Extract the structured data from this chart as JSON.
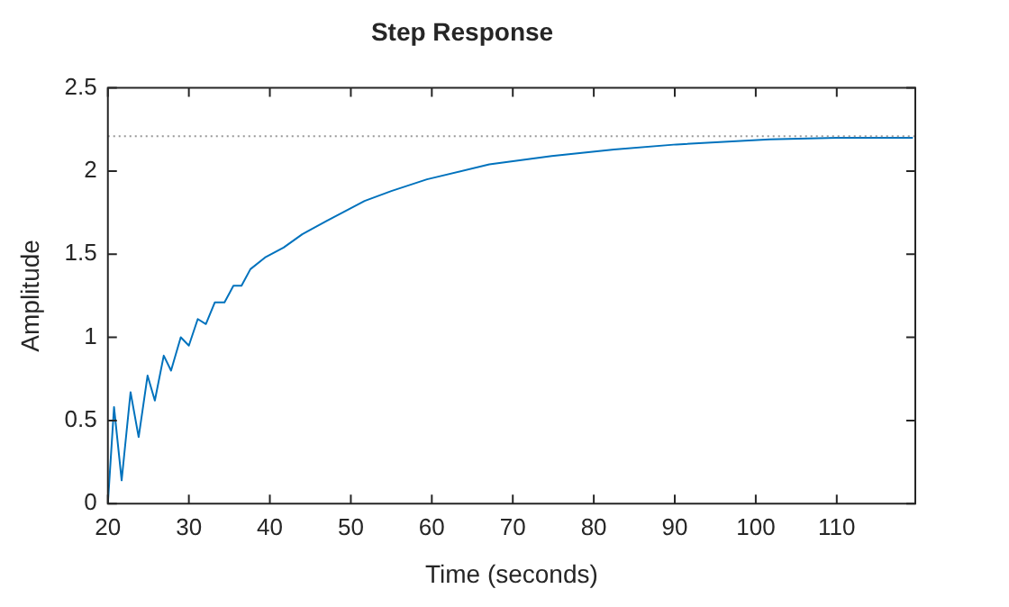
{
  "chart_data": {
    "type": "line",
    "title": "Step Response",
    "xlabel": "Time (seconds)",
    "ylabel": "Amplitude",
    "x": [
      20,
      20.76,
      21.7,
      22.8,
      23.8,
      24.9,
      25.8,
      26.9,
      27.8,
      29.0,
      30.0,
      31.1,
      32.1,
      33.2,
      34.4,
      35.5,
      36.5,
      37.6,
      39.4,
      41.7,
      44,
      47,
      51.7,
      55,
      59.4,
      67.1,
      74.8,
      82.5,
      90.2,
      101.7,
      110,
      119.4
    ],
    "series": [
      {
        "color": "#0072bd",
        "values": [
          0,
          0.58,
          0.14,
          0.67,
          0.4,
          0.77,
          0.62,
          0.89,
          0.8,
          1.0,
          0.95,
          1.11,
          1.08,
          1.21,
          1.21,
          1.31,
          1.31,
          1.41,
          1.48,
          1.54,
          1.62,
          1.7,
          1.82,
          1.88,
          1.95,
          2.04,
          2.09,
          2.13,
          2.16,
          2.19,
          2.2,
          2.2
        ]
      }
    ],
    "xlim": [
      20,
      119.7
    ],
    "xticks": [
      20,
      30,
      40,
      50,
      60,
      70,
      80,
      90,
      100,
      110
    ],
    "ylim": [
      0,
      2.5
    ],
    "yticks": [
      0,
      0.5,
      1,
      1.5,
      2,
      2.5
    ],
    "ref_lines": [
      {
        "axis": "y",
        "value": 2.21,
        "color": "#999999",
        "line_style": "dotted"
      }
    ],
    "grid": false,
    "legend": false,
    "marker": "none",
    "line_style": "solid"
  }
}
